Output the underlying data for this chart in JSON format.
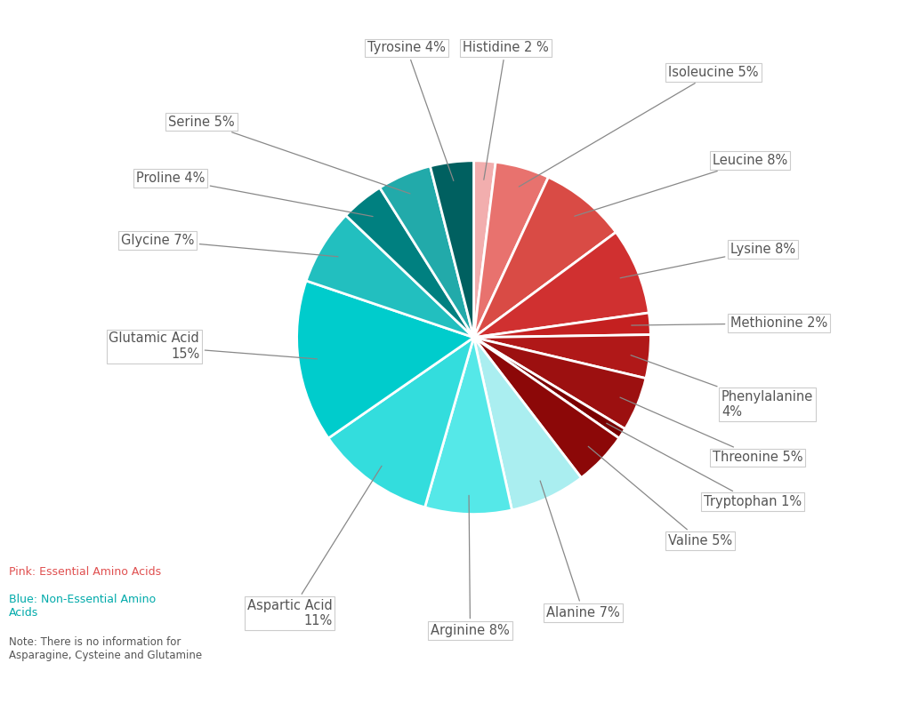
{
  "labels": [
    "Histidine 2 %",
    "Isoleucine 5%",
    "Leucine 8%",
    "Lysine 8%",
    "Methionine 2%",
    "Phenylalanine\n4%",
    "Threonine 5%",
    "Tryptophan 1%",
    "Valine 5%",
    "Alanine 7%",
    "Arginine 8%",
    "Aspartic Acid\n11%",
    "Glutamic Acid\n15%",
    "Glycine 7%",
    "Proline 4%",
    "Serine 5%",
    "Tyrosine 4%"
  ],
  "values": [
    2,
    5,
    8,
    8,
    2,
    4,
    5,
    1,
    5,
    7,
    8,
    11,
    15,
    7,
    4,
    5,
    4
  ],
  "colors": [
    "#F2AEAE",
    "#E8726E",
    "#D94B45",
    "#D03030",
    "#C42020",
    "#B01818",
    "#9C1010",
    "#7A0000",
    "#8C0808",
    "#AAEEF0",
    "#55E8E8",
    "#33DDDD",
    "#00CCCC",
    "#22BFBF",
    "#008080",
    "#22AAAA",
    "#006060"
  ],
  "legend_pink_text": "Pink: Essential Amino Acids",
  "legend_blue_text": "Blue: Non-Essential Amino\nAcids",
  "legend_note": "Note: There is no information for\nAsparagine, Cysteine and Glutamine",
  "pink_color": "#E05050",
  "blue_color": "#00AAAA",
  "note_color": "#555555",
  "background_color": "#FFFFFF",
  "label_color": "#555555"
}
